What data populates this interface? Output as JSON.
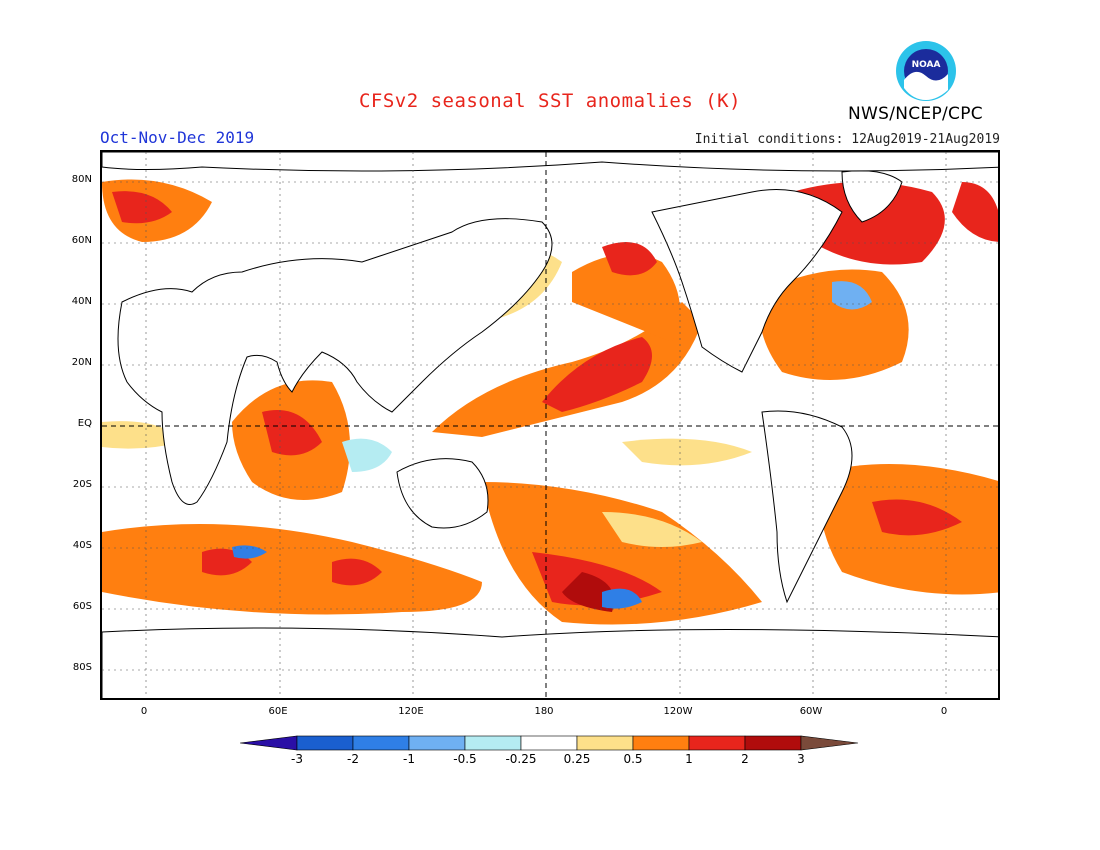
{
  "title": "CFSv2 seasonal SST anomalies (K)",
  "period": "Oct-Nov-Dec 2019",
  "initial_conditions": "Initial conditions: 12Aug2019-21Aug2019",
  "agency": "NWS/NCEP/CPC",
  "logo_text": "NOAA",
  "lat_labels": [
    "80N",
    "60N",
    "40N",
    "20N",
    "EQ",
    "20S",
    "40S",
    "60S",
    "80S"
  ],
  "lon_labels": [
    "0",
    "60E",
    "120E",
    "180",
    "120W",
    "60W",
    "0"
  ],
  "colorbar": {
    "labels": [
      "-3",
      "-2",
      "-1",
      "-0.5",
      "-0.25",
      "0.25",
      "0.5",
      "1",
      "2",
      "3"
    ],
    "colors": [
      "#2a0fa6",
      "#1a5fcf",
      "#2f7fe6",
      "#6fb0f2",
      "#b5ecf2",
      "#ffffff",
      "#fde08a",
      "#ff7f10",
      "#e8251c",
      "#b00c0c",
      "#7a4a3a"
    ]
  }
}
